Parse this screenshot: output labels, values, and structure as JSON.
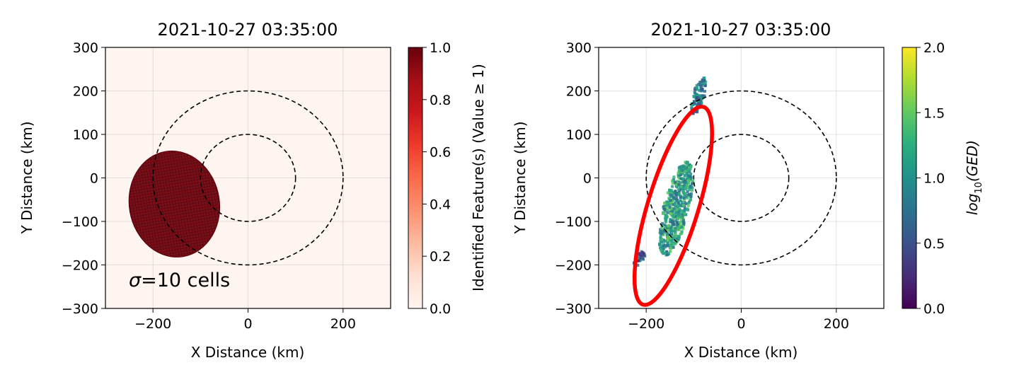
{
  "chart_data": [
    {
      "type": "heatmap",
      "title": "2021-10-27 03:35:00",
      "xlabel": "X Distance (km)",
      "ylabel": "Y Distance (km)",
      "xlim": [
        -300,
        300
      ],
      "ylim": [
        -300,
        300
      ],
      "xticks": [
        -200,
        0,
        200
      ],
      "xtick_labels": [
        "−200",
        "0",
        "200"
      ],
      "yticks": [
        300,
        200,
        100,
        0,
        -100,
        -200,
        -300
      ],
      "ytick_labels": [
        "300",
        "200",
        "100",
        "0",
        "−100",
        "−200",
        "−300"
      ],
      "grid": true,
      "colormap": "Reds",
      "background_color": "#fff5f0",
      "feature_color": "#67000d",
      "colorbar": {
        "label": "Identified Feature(s) (Value ≥ 1)",
        "range": [
          0.0,
          1.0
        ],
        "ticks": [
          0.0,
          0.2,
          0.4,
          0.6,
          0.8,
          1.0
        ],
        "tick_labels": [
          "0.0",
          "0.2",
          "0.4",
          "0.6",
          "0.8",
          "1.0"
        ]
      },
      "feature_region": {
        "shape": "filled ellipse",
        "center": [
          -155,
          -60
        ],
        "x_range": [
          -230,
          -40
        ],
        "y_range": [
          -185,
          60
        ]
      },
      "range_rings_km": [
        100,
        200
      ],
      "ring_center": [
        0,
        0
      ],
      "annotation": "=10 cells",
      "annotation_symbol": "σ"
    },
    {
      "type": "heatmap",
      "title": "2021-10-27 03:35:00",
      "xlabel": "X Distance (km)",
      "ylabel": "Y Distance (km)",
      "xlim": [
        -300,
        300
      ],
      "ylim": [
        -300,
        300
      ],
      "xticks": [
        -200,
        0,
        200
      ],
      "xtick_labels": [
        "−200",
        "0",
        "200"
      ],
      "yticks": [
        300,
        200,
        100,
        0,
        -100,
        -200,
        -300
      ],
      "ytick_labels": [
        "300",
        "200",
        "100",
        "0",
        "−100",
        "−200",
        "−300"
      ],
      "grid": true,
      "colormap": "viridis",
      "colorbar": {
        "label_prefix": "log",
        "label_sub": "10",
        "label_arg": "(GED)",
        "range": [
          0.0,
          2.0
        ],
        "ticks": [
          0.0,
          0.5,
          1.0,
          1.5,
          2.0
        ],
        "tick_labels": [
          "0.0",
          "0.5",
          "1.0",
          "1.5",
          "2.0"
        ]
      },
      "lightning_clusters": [
        {
          "x_range": [
            -115,
            -70
          ],
          "y_range": [
            150,
            235
          ],
          "level": 0.8
        },
        {
          "x_range": [
            -190,
            -90
          ],
          "y_range": [
            -175,
            40
          ],
          "level": 1.1
        },
        {
          "x_range": [
            -235,
            -200
          ],
          "y_range": [
            -200,
            -165
          ],
          "level": 0.5
        }
      ],
      "ellipse_fit": {
        "center": [
          -143,
          -64
        ],
        "x_extent": [
          -245,
          -40
        ],
        "y_extent": [
          -310,
          180
        ],
        "color": "#ff0000"
      },
      "range_rings_km": [
        100,
        200
      ],
      "ring_center": [
        0,
        0
      ]
    }
  ]
}
